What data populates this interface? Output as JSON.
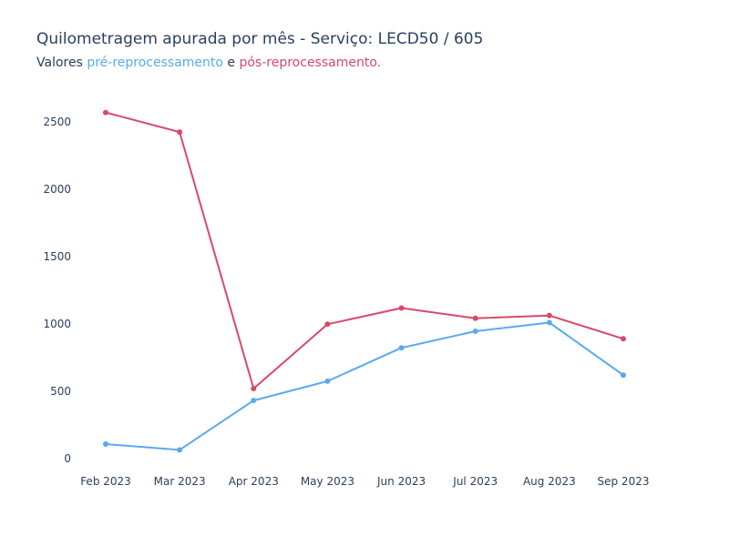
{
  "title": "Quilometragem apurada por mês - Serviço: LECD50 / 605",
  "subtitle": {
    "prefix": "Valores ",
    "pre_label": "pré-reprocessamento",
    "middle": " e ",
    "post_label": "pós-reprocessamento."
  },
  "colors": {
    "pre": "#5aa9ef",
    "post": "#d9486a",
    "text": "#2a3f5f"
  },
  "chart_data": {
    "type": "line",
    "title": "Quilometragem apurada por mês - Serviço: LECD50 / 605",
    "categories": [
      "Feb 2023",
      "Mar 2023",
      "Apr 2023",
      "May 2023",
      "Jun 2023",
      "Jul 2023",
      "Aug 2023",
      "Sep 2023"
    ],
    "series": [
      {
        "key": "pre",
        "values": [
          108,
          65,
          432,
          575,
          823,
          946,
          1010,
          620
        ]
      },
      {
        "key": "post",
        "values": [
          2570,
          2425,
          520,
          998,
          1118,
          1042,
          1063,
          890
        ]
      }
    ],
    "yticks": [
      0,
      500,
      1000,
      1500,
      2000,
      2500
    ],
    "ylim": [
      -60,
      2620
    ],
    "grid": false,
    "legend": "none"
  }
}
